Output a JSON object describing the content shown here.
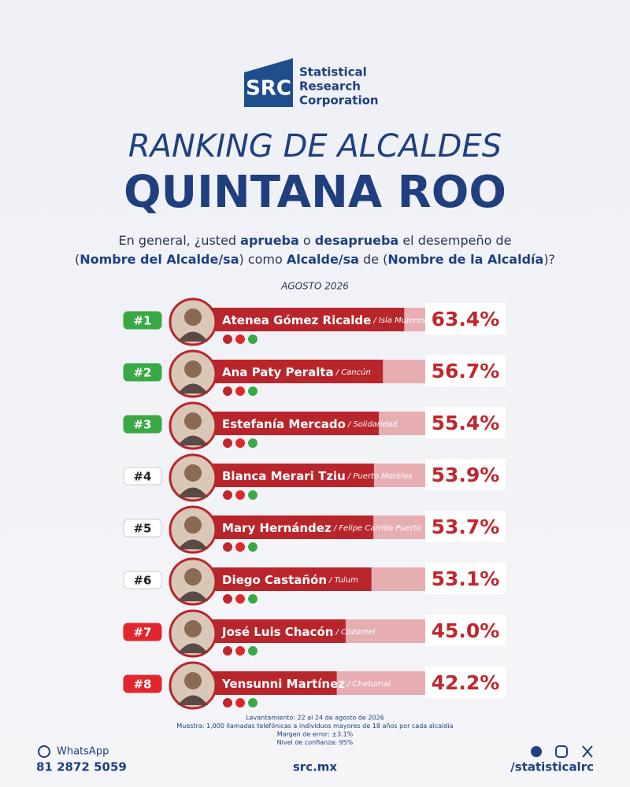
{
  "header": {
    "logo": "SRC",
    "company": [
      "Statistical",
      "Research",
      "Corporation"
    ],
    "title": "RANKING DE ALCALDES",
    "state": "QUINTANA ROO",
    "question": [
      [
        {
          "text": "En general, ¿usted ",
          "bold": false
        },
        {
          "text": "aprueba",
          "bold": true
        },
        {
          "text": " o ",
          "bold": false
        },
        {
          "text": "desaprueba",
          "bold": true
        },
        {
          "text": " el desempeño de",
          "bold": false
        }
      ],
      [
        {
          "text": "(",
          "bold": false
        },
        {
          "text": "Nombre del Alcalde/sa",
          "bold": true
        },
        {
          "text": ") como ",
          "bold": false
        },
        {
          "text": "Alcalde/sa",
          "bold": true
        },
        {
          "text": " de (",
          "bold": false
        },
        {
          "text": "Nombre de la Alcaldía",
          "bold": true
        },
        {
          "text": ")?",
          "bold": false
        }
      ]
    ],
    "date": "AGOSTO 2026"
  },
  "chart_data": {
    "type": "hbar",
    "ranks": [
      "#1",
      "#2",
      "#3",
      "#4",
      "#5",
      "#6",
      "#7",
      "#8"
    ],
    "badge_colors": [
      "#3aa845",
      "#3aa845",
      "#3aa845",
      "#ffffff",
      "#ffffff",
      "#ffffff",
      "#e0272e",
      "#e0272e"
    ],
    "categories": [
      "Atenea Gómez Ricalde",
      "Ana Paty Peralta",
      "Estefanía Mercado",
      "Blanca Merari Tziu",
      "Mary Hernández",
      "Diego Castañón",
      "José Luis Chacón",
      "Yensunni Martínez"
    ],
    "places": [
      "/ Isla Mujeres",
      "/ Cancún",
      "/ Solidaridad",
      "/ Puerto Morelos",
      "/ Felipe Carrillo Puerto",
      "/ Tulum",
      "/ Cozumel",
      "/ Chetumal"
    ],
    "values": [
      63.4,
      56.7,
      55.4,
      53.9,
      53.7,
      53.1,
      45.0,
      42.2
    ],
    "value_labels": [
      "63.4%",
      "56.7%",
      "55.4%",
      "53.9%",
      "53.7%",
      "53.1%",
      "45.0%",
      "42.2%"
    ],
    "color": "#b8262c",
    "track_color": "#e7aeb2",
    "xlim": [
      0,
      70
    ]
  },
  "footer": {
    "notes": [
      "Levantamiento: 22 al 24 de agosto de 2026",
      "Muestra: 1,000 llamadas telefónicas a individuos mayores de 18 años por cada alcaldia",
      "Margen de error: ±3.1%",
      "Nivel de confianza: 95%"
    ],
    "whatsapp": "WhatsApp",
    "phone": "81 2872 5059",
    "site": "src.mx",
    "social": "/statisticalrc"
  }
}
